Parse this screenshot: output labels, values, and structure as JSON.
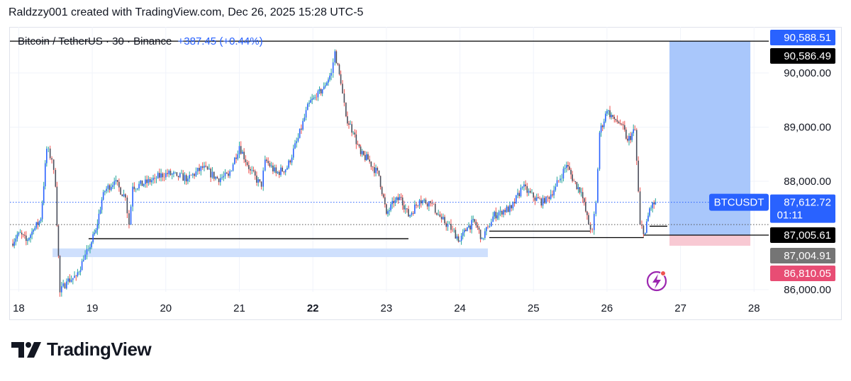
{
  "attribution": "Raldzzy001 created with TradingView.com, Dec 26, 2025 15:28 UTC-5",
  "legend": {
    "symbol": "Bitcoin / TetherUS · 30 · Binance",
    "change": "+387.45 (+0.44%)"
  },
  "brand": {
    "name": "TradingView"
  },
  "colors": {
    "up": "#26a69a",
    "down": "#ef5350",
    "bar": "#2962ff",
    "accent": "#2962ff",
    "target_zone": "#a9c7fb",
    "stop_zone": "#f8c9d3",
    "support_zone": "#cfe0fd",
    "pink_tag": "#e84d74",
    "gray_tag": "#757575",
    "black_tag": "#000000"
  },
  "chart_data": {
    "type": "candlestick",
    "symbol": "BTCUSDT",
    "interval": "30",
    "exchange": "Binance",
    "x_ticks": [
      "18",
      "19",
      "20",
      "21",
      "22",
      "23",
      "24",
      "25",
      "26",
      "27",
      "28"
    ],
    "y_ticks": [
      "90,000.00",
      "89,000.00",
      "88,000.00",
      "86,000.00"
    ],
    "y_tick_values": [
      90000,
      89000,
      88000,
      86000
    ],
    "ylim": [
      85960,
      90850
    ],
    "xlim": [
      17.88,
      28.2
    ],
    "series": [
      {
        "x": [
          17.9,
          18.0,
          18.1,
          18.2,
          18.3,
          18.38,
          18.45,
          18.5,
          18.56,
          18.65,
          18.78,
          18.88,
          18.95,
          19.05,
          19.15,
          19.3,
          19.45,
          19.5,
          19.55,
          19.7,
          19.85,
          20.0,
          20.15,
          20.3,
          20.5,
          20.7,
          20.85,
          21.0,
          21.15,
          21.3,
          21.35,
          21.5,
          21.65,
          21.8,
          21.95,
          22.05,
          22.15,
          22.25,
          22.3,
          22.38,
          22.45,
          22.55,
          22.65,
          22.75,
          22.9,
          23.0,
          23.1,
          23.2,
          23.3,
          23.45,
          23.6,
          23.75,
          23.9,
          24.0,
          24.1,
          24.2,
          24.3,
          24.38,
          24.45,
          24.55,
          24.7,
          24.85,
          25.0,
          25.15,
          25.3,
          25.45,
          25.55,
          25.65,
          25.75,
          25.8,
          25.85,
          25.9,
          26.0,
          26.1,
          26.2,
          26.28,
          26.38,
          26.45,
          26.52,
          26.58,
          26.66
        ],
        "close": [
          86850,
          87050,
          86900,
          87100,
          87300,
          88600,
          88400,
          87900,
          85950,
          86150,
          86250,
          86550,
          86750,
          87100,
          87800,
          88000,
          87700,
          87200,
          87900,
          87950,
          88050,
          88150,
          88100,
          88050,
          88250,
          88050,
          88100,
          88650,
          88200,
          87900,
          88400,
          88150,
          88250,
          88800,
          89450,
          89550,
          89750,
          90000,
          90400,
          89800,
          89200,
          88900,
          88500,
          88400,
          88100,
          87400,
          87600,
          87700,
          87350,
          87650,
          87600,
          87300,
          87100,
          86900,
          87150,
          87250,
          86950,
          87150,
          87350,
          87450,
          87500,
          87900,
          87700,
          87600,
          87900,
          88300,
          88000,
          87800,
          87200,
          87100,
          87600,
          88900,
          89300,
          89150,
          89050,
          88750,
          88950,
          87200,
          87050,
          87500,
          87610
        ]
      }
    ],
    "horizontal_lines": [
      90586.49,
      86940,
      87005.61,
      86880,
      87100
    ],
    "positions": {
      "target": 90588.51,
      "entry": 87005.61,
      "stop": 86810.05
    },
    "price_labels": [
      {
        "text": "90,588.51",
        "value": 90588.51,
        "color": "#2962ff"
      },
      {
        "text": "90,586.49",
        "value": 90586.49,
        "color": "#000000"
      },
      {
        "text": "87,612.72",
        "subtext": "01:11",
        "value": 87612.72,
        "color": "#2962ff"
      },
      {
        "text": "87,005.61",
        "value": 87005.61,
        "color": "#000000"
      },
      {
        "text": "87,004.91",
        "value": 87004.91,
        "color": "#757575"
      },
      {
        "text": "86,810.05",
        "value": 86810.05,
        "color": "#e84d74"
      }
    ],
    "current_symbol_label": "BTCUSDT",
    "grid": true
  }
}
